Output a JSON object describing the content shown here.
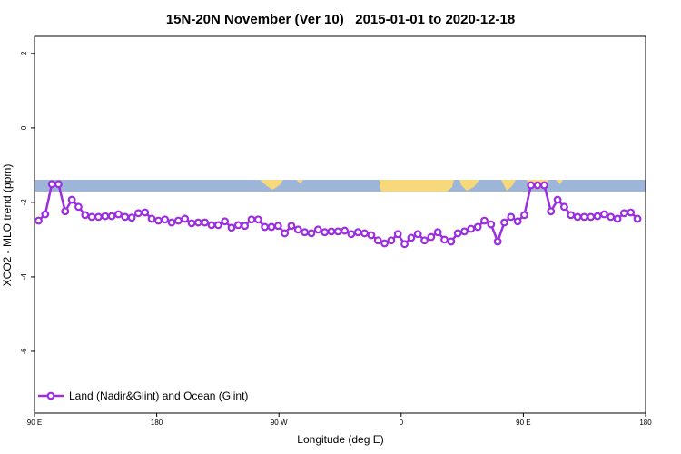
{
  "chart_data": {
    "type": "line",
    "title": "15N-20N November (Ver 10)   2015-01-01 to 2020-12-18",
    "x_label": "Longitude (deg E)",
    "y_label": "XCO2 - MLO trend (ppm)",
    "xlim": [
      90,
      540
    ],
    "ylim": [
      -7.66,
      2.46
    ],
    "xticks": [
      {
        "value": 90,
        "label": "90 E"
      },
      {
        "value": 180,
        "label": "180"
      },
      {
        "value": 270,
        "label": "90 W"
      },
      {
        "value": 360,
        "label": "0"
      },
      {
        "value": 450,
        "label": "90 E"
      },
      {
        "value": 540,
        "label": "180"
      }
    ],
    "yticks": [
      -6,
      -4,
      -2,
      0,
      2
    ],
    "legend": "bottom-left",
    "series": [
      {
        "name": "Land (Nadir&Glint) and Ocean (Glint)",
        "color": "#9a2ee0",
        "x": [
          93,
          97.9,
          102.8,
          107.7,
          112.6,
          117.5,
          122.4,
          127.3,
          132.2,
          137.1,
          142,
          146.9,
          151.8,
          156.7,
          161.6,
          166.5,
          171.4,
          176.3,
          181.2,
          186.1,
          191,
          195.9,
          200.8,
          205.7,
          210.6,
          215.5,
          220.4,
          225.3,
          230.2,
          235.1,
          240,
          244.9,
          249.8,
          254.7,
          259.6,
          264.5,
          269.4,
          274.3,
          279.2,
          284.1,
          289,
          293.9,
          298.8,
          303.7,
          308.6,
          313.5,
          318.4,
          323.3,
          328.2,
          333.1,
          338,
          342.9,
          347.8,
          352.7,
          357.6,
          362.5,
          367.4,
          372.3,
          377.2,
          382.1,
          387,
          391.9,
          396.8,
          401.7,
          406.6,
          411.5,
          416.4,
          421.3,
          426.2,
          431.1,
          436,
          440.9,
          445.8,
          450.7,
          455.6,
          460.5,
          465.4,
          470.3,
          475.2,
          480.1,
          485,
          489.9,
          494.8,
          499.7,
          504.6,
          509.5,
          514.4,
          519.3,
          524.2,
          529.1,
          534
        ],
        "values": [
          -2.49,
          -2.32,
          -1.51,
          -1.51,
          -2.24,
          -1.93,
          -2.12,
          -2.34,
          -2.39,
          -2.39,
          -2.37,
          -2.37,
          -2.32,
          -2.39,
          -2.41,
          -2.29,
          -2.27,
          -2.44,
          -2.49,
          -2.46,
          -2.54,
          -2.49,
          -2.44,
          -2.56,
          -2.54,
          -2.54,
          -2.61,
          -2.61,
          -2.51,
          -2.68,
          -2.61,
          -2.63,
          -2.46,
          -2.46,
          -2.66,
          -2.66,
          -2.63,
          -2.83,
          -2.63,
          -2.73,
          -2.8,
          -2.83,
          -2.73,
          -2.8,
          -2.78,
          -2.78,
          -2.76,
          -2.85,
          -2.8,
          -2.83,
          -2.88,
          -3.02,
          -3.1,
          -3.02,
          -2.85,
          -3.12,
          -2.95,
          -2.85,
          -3.02,
          -2.93,
          -2.8,
          -3.0,
          -3.05,
          -2.83,
          -2.78,
          -2.71,
          -2.66,
          -2.49,
          -2.59,
          -3.05,
          -2.54,
          -2.39,
          -2.51,
          -2.34,
          -1.54,
          -1.54,
          -1.54,
          -2.24,
          -1.93,
          -2.12,
          -2.34,
          -2.39,
          -2.39,
          -2.39,
          -2.37,
          -2.32,
          -2.39,
          -2.44,
          -2.29,
          -2.27,
          -2.44
        ]
      }
    ]
  }
}
